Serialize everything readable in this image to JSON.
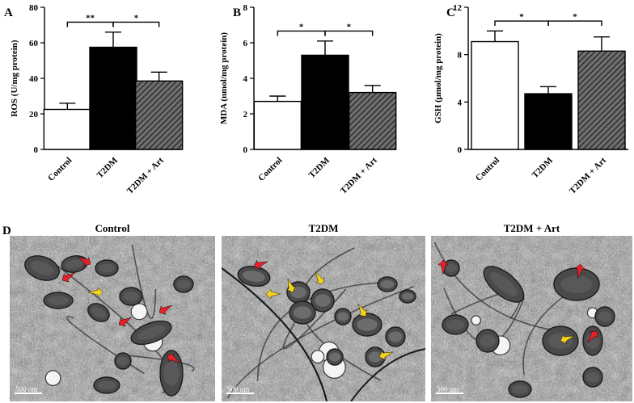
{
  "chart_data": [
    {
      "type": "bar",
      "panel": "A",
      "categories": [
        "Control",
        "T2DM",
        "T2DM + Art"
      ],
      "values": [
        22.5,
        57.5,
        38.5
      ],
      "errors": [
        3.5,
        8.5,
        5
      ],
      "ylabel": "ROS (U/mg protein)",
      "ylim": [
        0,
        80
      ],
      "yticks": [
        0,
        20,
        40,
        60,
        80
      ],
      "significance": [
        {
          "from": 0,
          "to": 1,
          "label": "**"
        },
        {
          "from": 1,
          "to": 2,
          "label": "*"
        }
      ]
    },
    {
      "type": "bar",
      "panel": "B",
      "categories": [
        "Control",
        "T2DM",
        "T2DM + Art"
      ],
      "values": [
        2.7,
        5.3,
        3.2
      ],
      "errors": [
        0.3,
        0.8,
        0.4
      ],
      "ylabel": "MDA (nmol/mg protein)",
      "ylim": [
        0,
        8
      ],
      "yticks": [
        0,
        2,
        4,
        6,
        8
      ],
      "significance": [
        {
          "from": 0,
          "to": 1,
          "label": "*"
        },
        {
          "from": 1,
          "to": 2,
          "label": "*"
        }
      ]
    },
    {
      "type": "bar",
      "panel": "C",
      "categories": [
        "Control",
        "T2DM",
        "T2DM + Art"
      ],
      "values": [
        9.1,
        4.7,
        8.3
      ],
      "errors": [
        0.9,
        0.6,
        1.2
      ],
      "ylabel": "GSH (μmol/mg protein)",
      "ylim": [
        0,
        12
      ],
      "yticks": [
        0,
        4,
        8,
        12
      ],
      "significance": [
        {
          "from": 0,
          "to": 1,
          "label": "*"
        },
        {
          "from": 1,
          "to": 2,
          "label": "*"
        }
      ]
    }
  ],
  "bar_styles": [
    "white",
    "black",
    "hatched"
  ],
  "micrographs": {
    "panel": "D",
    "titles": [
      "Control",
      "T2DM",
      "T2DM + Art"
    ],
    "scale_bar_label": "500 nm",
    "arrow_colors": {
      "red": "#e8202a",
      "yellow": "#f2d21b"
    }
  }
}
